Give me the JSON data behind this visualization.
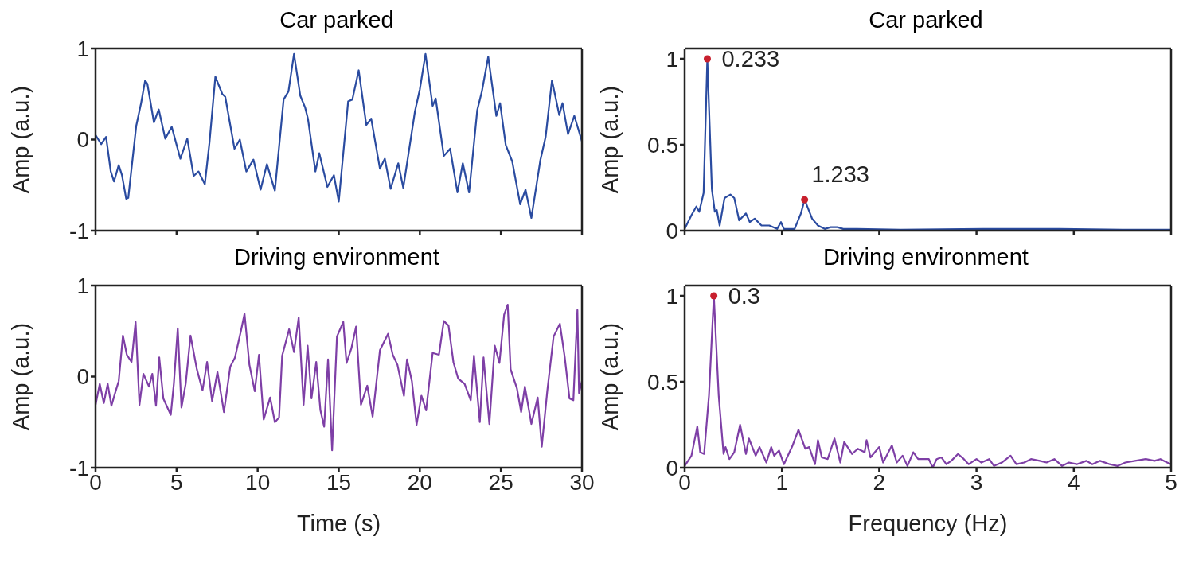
{
  "chart_data": [
    {
      "type": "line",
      "title": "Car parked",
      "ylabel": "Amp (a.u.)",
      "xlim": [
        0,
        30
      ],
      "xticks": [
        0,
        5,
        10,
        15,
        20,
        25,
        30
      ],
      "ylim": [
        -1,
        1
      ],
      "yticks": [
        -1,
        0,
        1
      ],
      "tick_labels": "y",
      "grid": false,
      "legend": false,
      "marker": "none",
      "series": [
        {
          "color": "#2a4ba0",
          "x": [
            0,
            0.35,
            0.65,
            0.94,
            1.14,
            1.43,
            1.63,
            1.89,
            2.02,
            2.51,
            2.81,
            3.06,
            3.2,
            3.6,
            3.9,
            4.3,
            4.7,
            5.23,
            5.66,
            6.05,
            6.35,
            6.74,
            7.03,
            7.39,
            7.82,
            8.0,
            8.57,
            8.9,
            9.3,
            9.74,
            10.18,
            10.57,
            11.06,
            11.6,
            11.9,
            12.24,
            12.63,
            12.93,
            13.1,
            13.56,
            13.8,
            14.3,
            14.7,
            15.0,
            15.58,
            15.84,
            16.23,
            16.7,
            17.0,
            17.54,
            17.84,
            18.2,
            18.67,
            18.98,
            19.7,
            20.0,
            20.35,
            20.79,
            20.98,
            21.48,
            21.87,
            22.32,
            22.65,
            23.04,
            23.54,
            23.83,
            24.22,
            24.72,
            24.95,
            25.3,
            25.7,
            26.19,
            26.52,
            26.88,
            27.43,
            27.76,
            28.15,
            28.6,
            28.8,
            29.14,
            29.53,
            30
          ],
          "values": [
            0.05,
            -0.05,
            0.03,
            -0.35,
            -0.46,
            -0.28,
            -0.39,
            -0.65,
            -0.64,
            0.15,
            0.4,
            0.65,
            0.61,
            0.19,
            0.33,
            0.01,
            0.14,
            -0.21,
            0.01,
            -0.4,
            -0.35,
            -0.49,
            -0.03,
            0.69,
            0.5,
            0.47,
            -0.1,
            0.0,
            -0.35,
            -0.22,
            -0.55,
            -0.27,
            -0.56,
            0.44,
            0.53,
            0.94,
            0.48,
            0.35,
            0.23,
            -0.35,
            -0.15,
            -0.52,
            -0.39,
            -0.68,
            0.42,
            0.44,
            0.76,
            0.16,
            0.23,
            -0.32,
            -0.21,
            -0.54,
            -0.26,
            -0.53,
            0.31,
            0.55,
            0.94,
            0.37,
            0.45,
            -0.18,
            -0.1,
            -0.58,
            -0.26,
            -0.58,
            0.32,
            0.53,
            0.91,
            0.26,
            0.4,
            -0.06,
            -0.24,
            -0.71,
            -0.55,
            -0.86,
            -0.23,
            0.03,
            0.65,
            0.27,
            0.4,
            0.06,
            0.26,
            -0.02
          ]
        }
      ]
    },
    {
      "type": "line",
      "title": "Car parked",
      "ylabel": "Amp (a.u.)",
      "xlim": [
        0,
        5
      ],
      "xticks": [
        0,
        1,
        2,
        3,
        4,
        5
      ],
      "ylim": [
        0,
        1.06
      ],
      "yticks": [
        0,
        0.5,
        1
      ],
      "tick_labels": "y",
      "grid": false,
      "legend": false,
      "marker": "none",
      "annotations": [
        {
          "text": "0.233",
          "x": 0.233,
          "y": 1.0
        },
        {
          "text": "1.233",
          "x": 1.233,
          "y": 0.18
        }
      ],
      "series": [
        {
          "color": "#2a4ba0",
          "x": [
            0,
            0.07,
            0.12,
            0.15,
            0.195,
            0.233,
            0.28,
            0.31,
            0.33,
            0.36,
            0.41,
            0.47,
            0.51,
            0.56,
            0.63,
            0.67,
            0.72,
            0.79,
            0.87,
            0.95,
            0.99,
            1.02,
            1.13,
            1.195,
            1.233,
            1.31,
            1.37,
            1.44,
            1.5,
            1.57,
            1.63,
            1.77,
            2.22,
            3.07,
            3.85,
            4.5,
            5
          ],
          "values": [
            0.01,
            0.09,
            0.14,
            0.11,
            0.22,
            1.0,
            0.24,
            0.11,
            0.12,
            0.03,
            0.19,
            0.21,
            0.19,
            0.06,
            0.1,
            0.05,
            0.07,
            0.03,
            0.03,
            0.01,
            0.05,
            0.01,
            0.01,
            0.1,
            0.18,
            0.07,
            0.03,
            0.01,
            0.02,
            0.02,
            0.01,
            0.01,
            0.005,
            0.01,
            0.01,
            0.005,
            0.005
          ]
        },
        {
          "type": "scatter",
          "marker": "circle",
          "color": "#c8202e",
          "x": [
            0.233,
            1.233
          ],
          "values": [
            1.0,
            0.18
          ]
        }
      ]
    },
    {
      "type": "line",
      "title": "Driving environment",
      "xlabel": "Time (s)",
      "ylabel": "Amp (a.u.)",
      "xlim": [
        0,
        30
      ],
      "xticks": [
        0,
        5,
        10,
        15,
        20,
        25,
        30
      ],
      "ylim": [
        -1,
        1
      ],
      "yticks": [
        -1,
        0,
        1
      ],
      "grid": false,
      "legend": false,
      "marker": "none",
      "series": [
        {
          "color": "#7e3fa6",
          "x": [
            0,
            0.26,
            0.51,
            0.75,
            0.98,
            1.24,
            1.43,
            1.69,
            1.93,
            2.22,
            2.47,
            2.71,
            2.95,
            3.3,
            3.5,
            3.73,
            3.93,
            4.18,
            4.64,
            4.83,
            5.07,
            5.3,
            5.56,
            5.86,
            6.25,
            6.6,
            6.88,
            7.19,
            7.52,
            7.92,
            8.31,
            8.6,
            8.99,
            9.19,
            9.49,
            9.82,
            10.08,
            10.37,
            10.77,
            11.06,
            11.32,
            11.51,
            11.94,
            12.24,
            12.53,
            12.83,
            13.08,
            13.32,
            13.61,
            13.87,
            14.1,
            14.34,
            14.59,
            14.89,
            15.28,
            15.48,
            15.78,
            16.07,
            16.37,
            16.76,
            17.09,
            17.54,
            18.04,
            18.33,
            18.62,
            19.02,
            19.21,
            19.51,
            19.8,
            20.1,
            20.39,
            20.79,
            21.18,
            21.48,
            21.77,
            22.07,
            22.36,
            22.76,
            23.14,
            23.34,
            23.7,
            23.93,
            24.29,
            24.62,
            24.91,
            25.2,
            25.42,
            25.6,
            25.99,
            26.25,
            26.48,
            26.88,
            27.27,
            27.52,
            27.86,
            28.25,
            28.64,
            28.94,
            29.23,
            29.47,
            29.72,
            29.82,
            30
          ],
          "values": [
            -0.31,
            -0.08,
            -0.29,
            -0.08,
            -0.32,
            -0.16,
            -0.05,
            0.45,
            0.24,
            0.16,
            0.6,
            -0.31,
            0.03,
            -0.11,
            0.03,
            -0.32,
            0.21,
            -0.24,
            -0.42,
            -0.08,
            0.53,
            -0.34,
            -0.08,
            0.45,
            0.08,
            -0.15,
            0.16,
            -0.27,
            0.05,
            -0.39,
            0.11,
            0.21,
            0.52,
            0.69,
            0.13,
            -0.16,
            0.24,
            -0.47,
            -0.23,
            -0.5,
            -0.45,
            0.23,
            0.52,
            0.27,
            0.65,
            -0.31,
            0.34,
            -0.24,
            0.16,
            -0.37,
            -0.55,
            0.19,
            -0.81,
            0.44,
            0.6,
            0.15,
            0.31,
            0.55,
            -0.31,
            -0.1,
            -0.44,
            0.29,
            0.47,
            0.24,
            0.13,
            -0.21,
            0.19,
            -0.05,
            -0.53,
            -0.21,
            -0.37,
            0.26,
            0.24,
            0.61,
            0.56,
            0.16,
            -0.02,
            -0.08,
            -0.26,
            0.23,
            -0.5,
            0.21,
            -0.52,
            0.34,
            0.15,
            0.68,
            0.79,
            0.08,
            -0.13,
            -0.39,
            -0.11,
            -0.52,
            -0.23,
            -0.77,
            -0.16,
            0.44,
            0.58,
            0.21,
            -0.24,
            -0.26,
            0.73,
            -0.18,
            -0.05
          ]
        }
      ]
    },
    {
      "type": "line",
      "title": "Driving environment",
      "xlabel": "Frequency (Hz)",
      "ylabel": "Amp (a.u.)",
      "xlim": [
        0,
        5
      ],
      "xticks": [
        0,
        1,
        2,
        3,
        4,
        5
      ],
      "ylim": [
        0,
        1.06
      ],
      "yticks": [
        0,
        0.5,
        1
      ],
      "grid": false,
      "legend": false,
      "marker": "none",
      "annotations": [
        {
          "text": "0.3",
          "x": 0.3,
          "y": 1.0
        }
      ],
      "series": [
        {
          "color": "#7e3fa6",
          "x": [
            0,
            0.07,
            0.13,
            0.16,
            0.2,
            0.25,
            0.3,
            0.35,
            0.4,
            0.42,
            0.46,
            0.51,
            0.57,
            0.63,
            0.66,
            0.73,
            0.77,
            0.84,
            0.89,
            0.92,
            0.97,
            1.02,
            1.11,
            1.17,
            1.24,
            1.28,
            1.34,
            1.37,
            1.41,
            1.47,
            1.54,
            1.6,
            1.64,
            1.72,
            1.78,
            1.85,
            1.87,
            1.91,
            2.0,
            2.04,
            2.13,
            2.18,
            2.24,
            2.29,
            2.35,
            2.4,
            2.51,
            2.55,
            2.59,
            2.64,
            2.69,
            2.74,
            2.81,
            2.87,
            2.92,
            3.0,
            3.05,
            3.13,
            3.18,
            3.26,
            3.35,
            3.41,
            3.49,
            3.56,
            3.65,
            3.72,
            3.8,
            3.88,
            3.95,
            4.03,
            4.13,
            4.19,
            4.27,
            4.37,
            4.45,
            4.53,
            4.63,
            4.74,
            4.83,
            4.89,
            4.96,
            5
          ],
          "values": [
            0.01,
            0.07,
            0.24,
            0.09,
            0.08,
            0.42,
            1.0,
            0.42,
            0.08,
            0.12,
            0.05,
            0.09,
            0.25,
            0.08,
            0.17,
            0.07,
            0.12,
            0.03,
            0.12,
            0.07,
            0.1,
            0.02,
            0.13,
            0.22,
            0.11,
            0.12,
            0.02,
            0.16,
            0.06,
            0.05,
            0.17,
            0.03,
            0.15,
            0.08,
            0.11,
            0.09,
            0.16,
            0.06,
            0.12,
            0.03,
            0.13,
            0.03,
            0.07,
            0.01,
            0.09,
            0.05,
            0.05,
            0.0,
            0.05,
            0.06,
            0.02,
            0.04,
            0.08,
            0.05,
            0.02,
            0.05,
            0.03,
            0.05,
            0.01,
            0.03,
            0.07,
            0.02,
            0.03,
            0.05,
            0.04,
            0.03,
            0.05,
            0.01,
            0.03,
            0.02,
            0.04,
            0.02,
            0.04,
            0.02,
            0.01,
            0.03,
            0.04,
            0.05,
            0.04,
            0.05,
            0.03,
            0.02
          ]
        },
        {
          "type": "scatter",
          "marker": "circle",
          "color": "#c8202e",
          "x": [
            0.3
          ],
          "values": [
            1.0
          ]
        }
      ]
    }
  ]
}
